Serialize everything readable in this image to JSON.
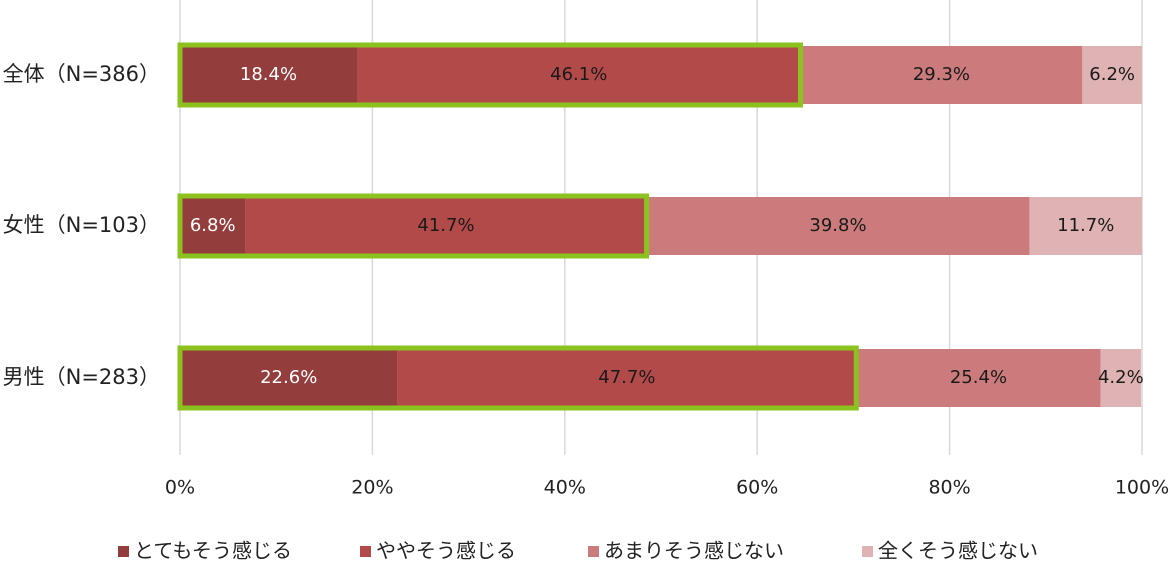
{
  "chart_data": {
    "type": "stacked_bar_horizontal",
    "categories": [
      "全体（N=386）",
      "女性（N=103）",
      "男性（N=283）"
    ],
    "series": [
      {
        "name": "とてもそう感じる",
        "color": "#943d3d",
        "label_color": "#ffffff",
        "values": [
          18.4,
          6.8,
          22.6
        ],
        "value_labels": [
          "18.4%",
          "6.8%",
          "22.6%"
        ]
      },
      {
        "name": "ややそう感じる",
        "color": "#b34a4a",
        "label_color": "#1a1a1a",
        "values": [
          46.1,
          41.7,
          47.7
        ],
        "value_labels": [
          "46.1%",
          "41.7%",
          "47.7%"
        ]
      },
      {
        "name": "あまりそう感じない",
        "color": "#cb7b7b",
        "label_color": "#1a1a1a",
        "values": [
          29.3,
          39.8,
          25.4
        ],
        "value_labels": [
          "29.3%",
          "39.8%",
          "25.4%"
        ]
      },
      {
        "name": "全くそう感じない",
        "color": "#dfb3b3",
        "label_color": "#1a1a1a",
        "values": [
          6.2,
          11.7,
          4.2
        ],
        "value_labels": [
          "6.2%",
          "11.7%",
          "4.2%"
        ]
      }
    ],
    "xlim": [
      0,
      100
    ],
    "xticks": [
      {
        "value": 0,
        "label": "0%"
      },
      {
        "value": 20,
        "label": "20%"
      },
      {
        "value": 40,
        "label": "40%"
      },
      {
        "value": 60,
        "label": "60%"
      },
      {
        "value": 80,
        "label": "80%"
      },
      {
        "value": 100,
        "label": "100%"
      }
    ],
    "grid": true,
    "legend": "bottom"
  }
}
